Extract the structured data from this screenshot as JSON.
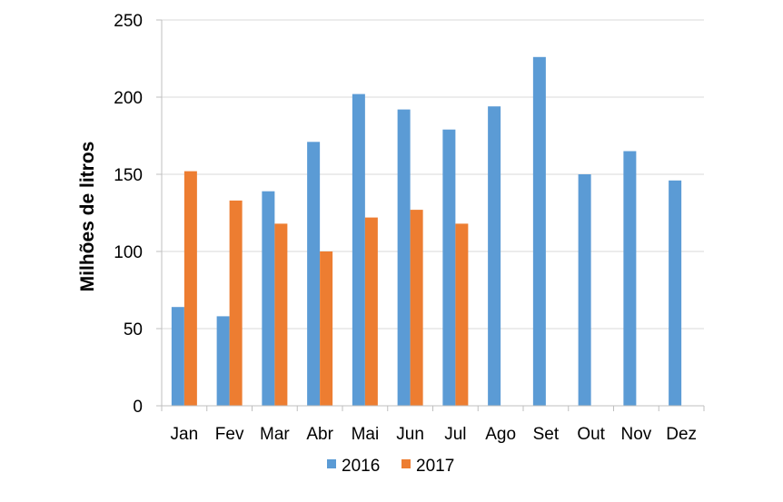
{
  "chart_data": {
    "type": "bar",
    "categories": [
      "Jan",
      "Fev",
      "Mar",
      "Abr",
      "Mai",
      "Jun",
      "Jul",
      "Ago",
      "Set",
      "Out",
      "Nov",
      "Dez"
    ],
    "series": [
      {
        "name": "2016",
        "color": "#5B9BD5",
        "values": [
          64,
          58,
          139,
          171,
          202,
          192,
          179,
          194,
          226,
          150,
          165,
          146
        ]
      },
      {
        "name": "2017",
        "color": "#ED7D31",
        "values": [
          152,
          133,
          118,
          100,
          122,
          127,
          118,
          null,
          null,
          null,
          null,
          null
        ]
      }
    ],
    "ylabel": "Milhões de litros",
    "ylim": [
      0,
      250
    ],
    "yticks": [
      0,
      50,
      100,
      150,
      200,
      250
    ],
    "grid": true,
    "legend": "bottom"
  }
}
